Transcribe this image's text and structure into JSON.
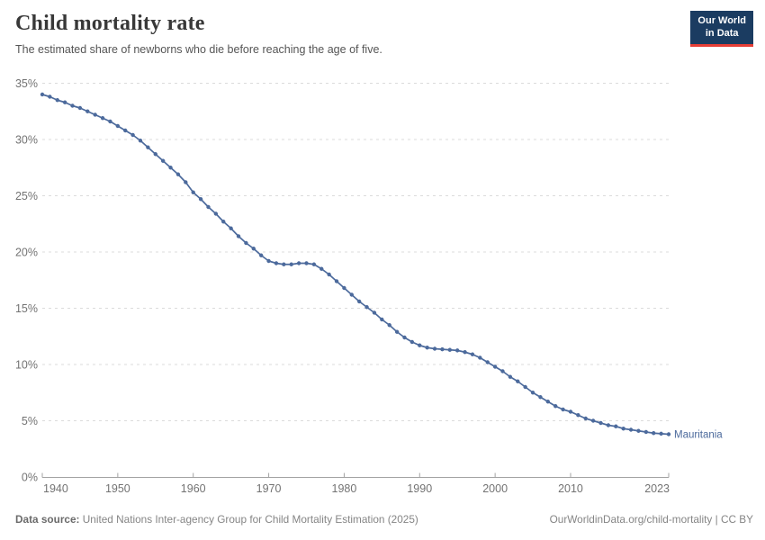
{
  "header": {
    "title": "Child mortality rate",
    "subtitle": "The estimated share of newborns who die before reaching the age of five.",
    "logo_line1": "Our World",
    "logo_line2": "in Data"
  },
  "chart_data": {
    "type": "line",
    "title": "Child mortality rate",
    "series": [
      {
        "name": "Mauritania",
        "color": "#4C6A9C",
        "x_start": 1940,
        "values": [
          34.0,
          33.8,
          33.5,
          33.3,
          33.0,
          32.8,
          32.5,
          32.2,
          31.9,
          31.6,
          31.2,
          30.8,
          30.4,
          29.9,
          29.3,
          28.7,
          28.1,
          27.5,
          26.9,
          26.2,
          25.3,
          24.7,
          24.0,
          23.4,
          22.7,
          22.1,
          21.4,
          20.8,
          20.3,
          19.7,
          19.2,
          19.0,
          18.9,
          18.9,
          19.0,
          19.0,
          18.9,
          18.5,
          18.0,
          17.4,
          16.8,
          16.2,
          15.6,
          15.1,
          14.6,
          14.0,
          13.5,
          12.9,
          12.4,
          12.0,
          11.7,
          11.5,
          11.4,
          11.35,
          11.3,
          11.25,
          11.1,
          10.9,
          10.6,
          10.2,
          9.8,
          9.4,
          8.9,
          8.5,
          8.0,
          7.5,
          7.1,
          6.7,
          6.3,
          6.0,
          5.8,
          5.5,
          5.2,
          5.0,
          4.8,
          4.6,
          4.5,
          4.3,
          4.2,
          4.1,
          4.0,
          3.9,
          3.85,
          3.8
        ]
      }
    ],
    "xlim": [
      1940,
      2023
    ],
    "ylim": [
      0,
      35
    ],
    "x_ticks": [
      1940,
      1950,
      1960,
      1970,
      1980,
      1990,
      2000,
      2010,
      2023
    ],
    "y_ticks": [
      0,
      5,
      10,
      15,
      20,
      25,
      30,
      35
    ],
    "y_tick_suffix": "%",
    "grid": "dashed horizontal",
    "legend_position": "end-of-line",
    "axis_color": "#A3A3A3",
    "grid_color": "#DBDBDB",
    "tick_label_color": "#737373"
  },
  "footer": {
    "source_label": "Data source:",
    "source_text": " United Nations Inter-agency Group for Child Mortality Estimation (2025)",
    "link_text": "OurWorldinData.org/child-mortality | CC BY"
  }
}
